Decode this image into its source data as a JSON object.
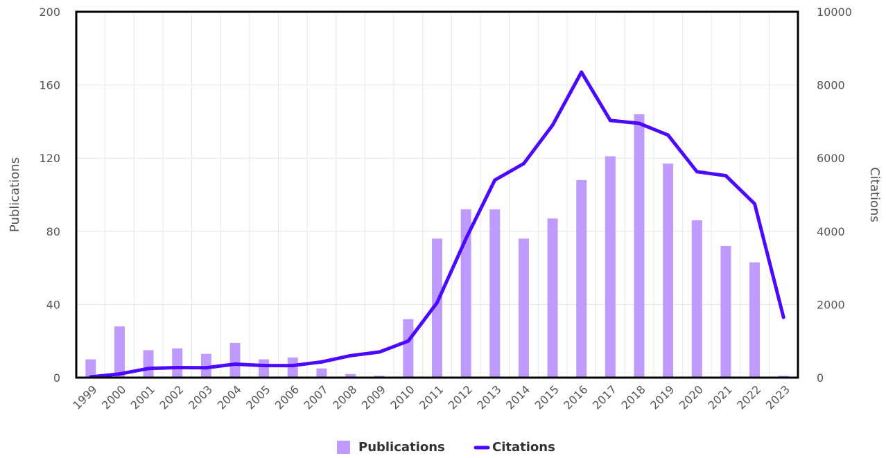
{
  "chart_data": {
    "type": "bar",
    "categories": [
      "1999",
      "2000",
      "2001",
      "2002",
      "2003",
      "2004",
      "2005",
      "2006",
      "2007",
      "2008",
      "2009",
      "2010",
      "2011",
      "2012",
      "2013",
      "2014",
      "2015",
      "2016",
      "2017",
      "2018",
      "2019",
      "2020",
      "2021",
      "2022",
      "2023"
    ],
    "series": [
      {
        "name": "Publications",
        "type": "bar",
        "axis": "left",
        "color": "#c09bff",
        "values": [
          10,
          28,
          15,
          16,
          13,
          19,
          10,
          11,
          5,
          2,
          1,
          32,
          76,
          92,
          92,
          76,
          87,
          108,
          121,
          144,
          117,
          86,
          72,
          63,
          1
        ]
      },
      {
        "name": "Citations",
        "type": "line",
        "axis": "right",
        "color": "#4b0aff",
        "values": [
          20,
          100,
          250,
          275,
          270,
          370,
          330,
          330,
          430,
          600,
          700,
          1000,
          2050,
          3800,
          5400,
          5850,
          6900,
          8350,
          7030,
          6950,
          6630,
          5630,
          5520,
          4750,
          1650
        ]
      }
    ],
    "xlabel": "",
    "ylabel": "Publications",
    "y2label": "Citations",
    "ylim": [
      0,
      200
    ],
    "y2lim": [
      0,
      10000
    ],
    "yticks": [
      0,
      40,
      80,
      120,
      160,
      200
    ],
    "y2ticks": [
      0,
      2000,
      4000,
      6000,
      8000,
      10000
    ],
    "grid": true,
    "legend_position": "bottom-center"
  }
}
